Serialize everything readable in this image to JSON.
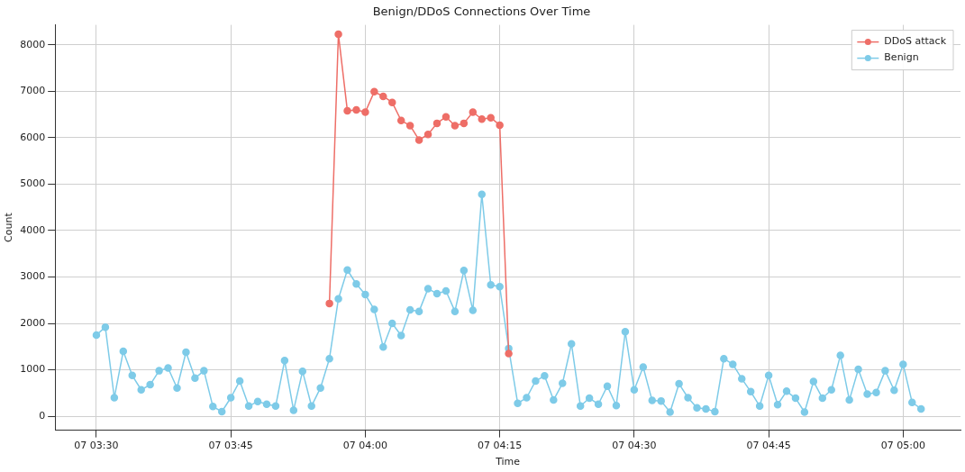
{
  "chart_data": {
    "type": "line",
    "title": "Benign/DDoS Connections Over Time",
    "xlabel": "Time",
    "ylabel": "Count",
    "categories": [
      "07 03:30",
      null,
      null,
      null,
      null,
      null,
      null,
      null,
      null,
      null,
      null,
      null,
      null,
      null,
      null,
      "07 03:45",
      null,
      null,
      null,
      null,
      null,
      null,
      null,
      null,
      null,
      null,
      null,
      null,
      null,
      null,
      "07 04:00",
      null,
      null,
      null,
      null,
      null,
      null,
      null,
      null,
      null,
      null,
      null,
      null,
      null,
      null,
      "07 04:15",
      null,
      null,
      null,
      null,
      null,
      null,
      null,
      null,
      null,
      null,
      null,
      null,
      null,
      null,
      "07 04:30",
      null,
      null,
      null,
      null,
      null,
      null,
      null,
      null,
      null,
      null,
      null,
      null,
      null,
      null,
      "07 04:45",
      null,
      null,
      null,
      null,
      null,
      null,
      null,
      null,
      null,
      null,
      null,
      null,
      null,
      null,
      "07 05:00",
      null,
      null
    ],
    "ylim": [
      -300,
      8430
    ],
    "yticks": [
      0,
      1000,
      2000,
      3000,
      4000,
      5000,
      6000,
      7000,
      8000
    ],
    "grid": true,
    "legend": "top right",
    "marker": "circle",
    "line_style": "solid",
    "series": [
      {
        "name": "DDoS attack",
        "color": "#ee6e67",
        "values": [
          null,
          null,
          null,
          null,
          null,
          null,
          null,
          null,
          null,
          null,
          null,
          null,
          null,
          null,
          null,
          null,
          null,
          null,
          null,
          null,
          null,
          null,
          null,
          null,
          null,
          null,
          2430,
          8230,
          6580,
          6600,
          6550,
          6990,
          6890,
          6760,
          6370,
          6260,
          5950,
          6070,
          6310,
          6450,
          6260,
          6310,
          6550,
          6400,
          6430,
          6270,
          1350,
          null,
          null,
          null,
          null,
          null,
          null,
          null,
          null,
          null,
          null,
          null,
          null,
          null,
          null,
          null,
          null,
          null,
          null,
          null,
          null,
          null,
          null,
          null,
          null,
          null,
          null,
          null,
          null,
          null,
          null,
          null,
          null,
          null,
          null,
          null,
          null,
          null,
          null,
          null,
          null,
          null,
          null,
          null,
          null,
          null,
          null
        ]
      },
      {
        "name": "Benign",
        "color": "#7ecbe8",
        "values": [
          1750,
          1920,
          400,
          1400,
          880,
          570,
          680,
          980,
          1040,
          610,
          1380,
          820,
          980,
          210,
          100,
          400,
          760,
          220,
          320,
          260,
          220,
          1200,
          130,
          970,
          220,
          610,
          1240,
          2530,
          3150,
          2850,
          2620,
          2300,
          1490,
          2000,
          1740,
          2290,
          2260,
          2750,
          2640,
          2700,
          2260,
          3140,
          2280,
          4780,
          2830,
          2790,
          1460,
          280,
          400,
          760,
          870,
          350,
          710,
          1560,
          220,
          390,
          260,
          650,
          230,
          1820,
          570,
          1060,
          340,
          330,
          90,
          700,
          400,
          180,
          160,
          100,
          1240,
          1120,
          810,
          530,
          220,
          880,
          250,
          540,
          390,
          90,
          750,
          390,
          570,
          1310,
          350,
          1010,
          480,
          510,
          980,
          560,
          1120,
          300,
          160
        ]
      }
    ]
  }
}
